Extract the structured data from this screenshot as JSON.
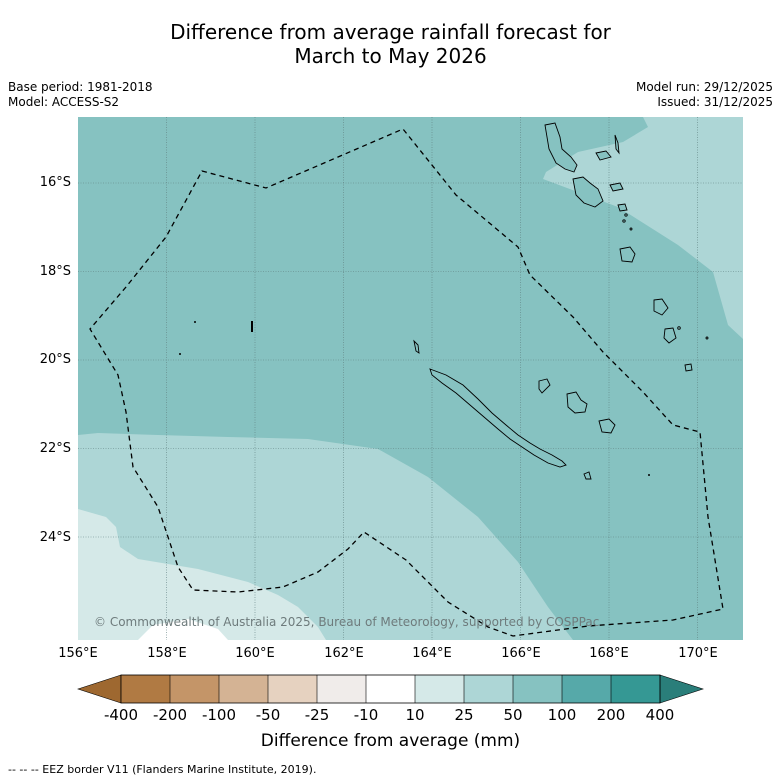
{
  "title": {
    "line1": "Difference from average rainfall forecast for",
    "line2": "March to May 2026"
  },
  "meta": {
    "base_period": "Base period: 1981-2018",
    "model": "Model: ACCESS-S2",
    "model_run": "Model run: 29/12/2025",
    "issued": "Issued: 31/12/2025"
  },
  "map": {
    "lat_labels": [
      "16°S",
      "18°S",
      "20°S",
      "22°S",
      "24°S"
    ],
    "lon_labels": [
      "156°E",
      "158°E",
      "160°E",
      "162°E",
      "164°E",
      "166°E",
      "168°E",
      "170°E"
    ],
    "copyright": "© Commonwealth of Australia 2025, Bureau of Meteorology, supported by COSPPac",
    "colors": {
      "band_50_100": "#86c2c1",
      "band_25_50": "#add6d6",
      "band_10_25": "#d5e9e8",
      "band_neg10_10": "#ffffff"
    }
  },
  "colorbar": {
    "labels": [
      "-400",
      "-200",
      "-100",
      "-50",
      "-25",
      "-10",
      "10",
      "25",
      "50",
      "100",
      "200",
      "400"
    ],
    "colors": [
      "#9e6830",
      "#b07a43",
      "#c49568",
      "#d4b394",
      "#e6d2c0",
      "#f0ecea",
      "#ffffff",
      "#d5e9e8",
      "#add6d6",
      "#86c2c1",
      "#56a9a9",
      "#359894",
      "#2a7e7a"
    ],
    "title": "Difference from average (mm)"
  },
  "footer": "--  --  -- EEZ border V11 (Flanders Marine Institute, 2019)."
}
